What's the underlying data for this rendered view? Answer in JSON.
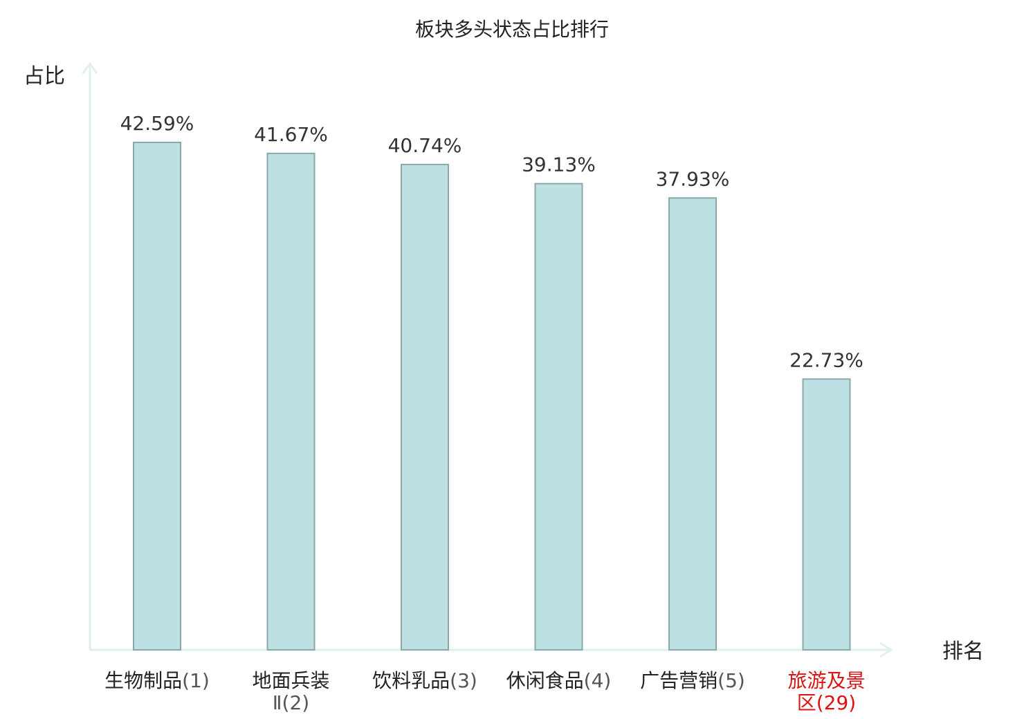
{
  "chart_data": {
    "type": "bar",
    "title": "板块多头状态占比排行",
    "xlabel": "排名",
    "ylabel": "占比",
    "categories": [
      {
        "name": "生物制品",
        "rank": "(1)",
        "highlight": false
      },
      {
        "name": "地面兵装",
        "rank": "Ⅱ(2)",
        "highlight": false
      },
      {
        "name": "饮料乳品",
        "rank": "(3)",
        "highlight": false
      },
      {
        "name": "休闲食品",
        "rank": "(4)",
        "highlight": false
      },
      {
        "name": "广告营销",
        "rank": "(5)",
        "highlight": false
      },
      {
        "name": "旅游及景",
        "rank": "区(29)",
        "highlight": true
      }
    ],
    "values": [
      42.59,
      41.67,
      40.74,
      39.13,
      37.93,
      22.73
    ],
    "value_labels": [
      "42.59%",
      "41.67%",
      "40.74%",
      "39.13%",
      "37.93%",
      "22.73%"
    ],
    "ylim": [
      0,
      47
    ],
    "grid": false,
    "legend": "none"
  },
  "colors": {
    "bar_fill": "#bde1e3",
    "bar_stroke": "#8aa8ab",
    "axis": "#dff1ef",
    "label": "#222222",
    "value_label": "#333333",
    "highlight": "#dd1111"
  }
}
